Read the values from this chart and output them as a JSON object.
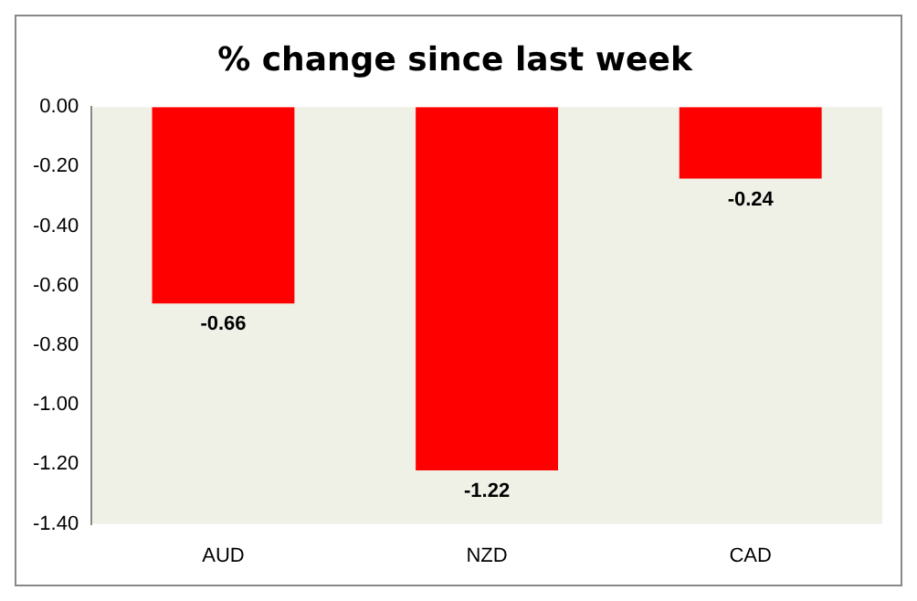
{
  "chart_data": {
    "type": "bar",
    "title": "% change since last week",
    "categories": [
      "AUD",
      "NZD",
      "CAD"
    ],
    "values": [
      -0.66,
      -1.22,
      -0.24
    ],
    "color": "#ff0000",
    "ylim": [
      -1.4,
      0
    ],
    "yticks": [
      {
        "value": 0,
        "label": "0.00"
      },
      {
        "value": -0.2,
        "label": "-0.20"
      },
      {
        "value": -0.4,
        "label": "-0.40"
      },
      {
        "value": -0.6,
        "label": "-0.60"
      },
      {
        "value": -0.8,
        "label": "-0.80"
      },
      {
        "value": -1,
        "label": "-1.00"
      },
      {
        "value": -1.2,
        "label": "-1.20"
      },
      {
        "value": -1.4,
        "label": "-1.40"
      }
    ],
    "grid": false,
    "legend": false,
    "data_labels": true
  }
}
